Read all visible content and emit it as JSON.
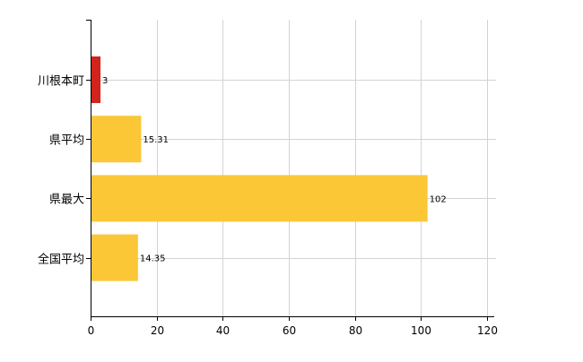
{
  "chart_data": {
    "type": "bar",
    "orientation": "horizontal",
    "categories": [
      "川根本町",
      "県平均",
      "県最大",
      "全国平均"
    ],
    "values": [
      3,
      15.31,
      102,
      14.35
    ],
    "data_labels": [
      "3",
      "15.31",
      "102",
      "14.35"
    ],
    "bar_colors": [
      "#d2231c",
      "#fbc736",
      "#fbc736",
      "#fbc736"
    ],
    "xlim": [
      0,
      120
    ],
    "x_ticks": [
      0,
      20,
      40,
      60,
      80,
      100,
      120
    ],
    "x_tick_labels": [
      "0",
      "20",
      "40",
      "60",
      "80",
      "100",
      "120"
    ],
    "grid": true,
    "grid_color": "#d3d3d3",
    "axis_color": "#000000",
    "title": "",
    "xlabel": "",
    "ylabel": ""
  }
}
